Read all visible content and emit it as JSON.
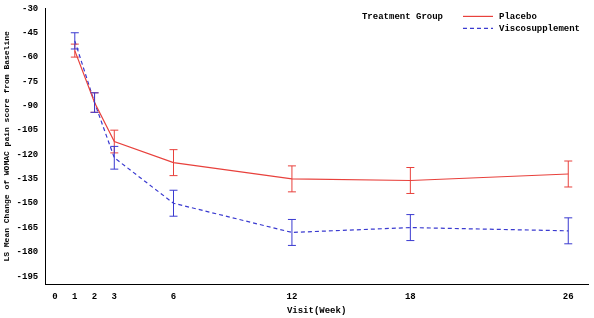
{
  "chart_data": {
    "type": "line",
    "x_label": "Visit(Week)",
    "y_label": "LS Mean Change of WOMAC pain score from Baseline",
    "legend_title": "Treatment Group",
    "legend": "top-right",
    "grid": false,
    "x": [
      1,
      2,
      3,
      6,
      12,
      18,
      26
    ],
    "xlim": [
      -0.5,
      27
    ],
    "xticks": [
      0,
      1,
      2,
      3,
      6,
      12,
      18,
      26
    ],
    "ylim": [
      -200,
      -30
    ],
    "yticks": [
      -195,
      -180,
      -165,
      -150,
      -135,
      -120,
      -105,
      -90,
      -75,
      -60,
      -45,
      -30
    ],
    "series": [
      {
        "name": "Placebo",
        "color": "#e8413c",
        "line_style": "solid",
        "marker": "none",
        "values": [
          -56,
          -88,
          -112,
          -125,
          -135,
          -136,
          -132
        ],
        "errors": [
          4,
          6,
          7,
          8,
          8,
          8,
          8
        ]
      },
      {
        "name": "Viscosupplement",
        "color": "#3a3ad0",
        "line_style": "dashed",
        "marker": "none",
        "values": [
          -50,
          -88,
          -122,
          -150,
          -168,
          -165,
          -167
        ],
        "errors": [
          5,
          6,
          7,
          8,
          8,
          8,
          8
        ]
      }
    ]
  }
}
